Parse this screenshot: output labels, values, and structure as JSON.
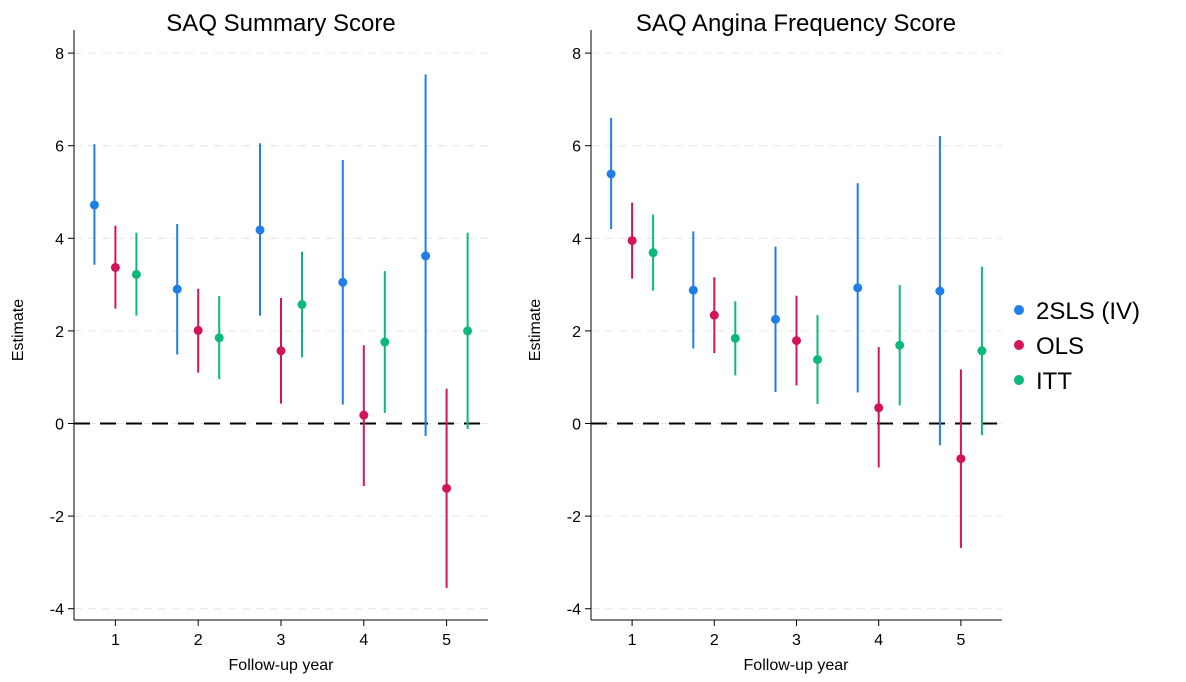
{
  "colors": {
    "2SLS (IV)": "#1f7fe6",
    "OLS": "#d3145a",
    "ITT": "#0cb97a"
  },
  "legend": {
    "placement": "right",
    "items": [
      "2SLS (IV)",
      "OLS",
      "ITT"
    ]
  },
  "chart_data": [
    {
      "type": "scatter",
      "title": "SAQ Summary Score",
      "xlabel": "Follow-up year",
      "ylabel": "Estimate",
      "categories": [
        "1",
        "2",
        "3",
        "4",
        "5"
      ],
      "ylim": [
        -4.2,
        8.5
      ],
      "yticks": [
        "8",
        "6",
        "4",
        "2",
        "0",
        "-2",
        "-4"
      ],
      "reference_line": 0,
      "grid": true,
      "series": [
        {
          "name": "2SLS (IV)",
          "estimate": [
            4.72,
            2.9,
            4.18,
            3.05,
            3.62
          ],
          "lower": [
            3.43,
            1.49,
            2.33,
            0.41,
            -0.27
          ],
          "upper": [
            6.03,
            4.31,
            6.05,
            5.69,
            7.54
          ]
        },
        {
          "name": "OLS",
          "estimate": [
            3.37,
            2.01,
            1.57,
            0.18,
            -1.4
          ],
          "lower": [
            2.48,
            1.1,
            0.43,
            -1.35,
            -3.55
          ],
          "upper": [
            4.27,
            2.91,
            2.71,
            1.69,
            0.75
          ]
        },
        {
          "name": "ITT",
          "estimate": [
            3.22,
            1.85,
            2.57,
            1.76,
            2.0
          ],
          "lower": [
            2.33,
            0.96,
            1.43,
            0.23,
            -0.12
          ],
          "upper": [
            4.12,
            2.75,
            3.71,
            3.29,
            4.12
          ]
        }
      ]
    },
    {
      "type": "scatter",
      "title": "SAQ Angina Frequency Score",
      "xlabel": "Follow-up year",
      "ylabel": "Estimate",
      "categories": [
        "1",
        "2",
        "3",
        "4",
        "5"
      ],
      "ylim": [
        -4.2,
        8.5
      ],
      "yticks": [
        "8",
        "6",
        "4",
        "2",
        "0",
        "-2",
        "-4"
      ],
      "reference_line": 0,
      "grid": true,
      "series": [
        {
          "name": "2SLS (IV)",
          "estimate": [
            5.39,
            2.88,
            2.25,
            2.93,
            2.86
          ],
          "lower": [
            4.2,
            1.62,
            0.68,
            0.67,
            -0.47
          ],
          "upper": [
            6.6,
            4.15,
            3.82,
            5.19,
            6.21
          ]
        },
        {
          "name": "OLS",
          "estimate": [
            3.95,
            2.34,
            1.79,
            0.34,
            -0.76
          ],
          "lower": [
            3.13,
            1.52,
            0.82,
            -0.95,
            -2.69
          ],
          "upper": [
            4.77,
            3.16,
            2.76,
            1.65,
            1.17
          ]
        },
        {
          "name": "ITT",
          "estimate": [
            3.69,
            1.84,
            1.38,
            1.69,
            1.57
          ],
          "lower": [
            2.87,
            1.04,
            0.42,
            0.39,
            -0.25
          ],
          "upper": [
            4.51,
            2.64,
            2.34,
            2.99,
            3.39
          ]
        }
      ]
    }
  ]
}
